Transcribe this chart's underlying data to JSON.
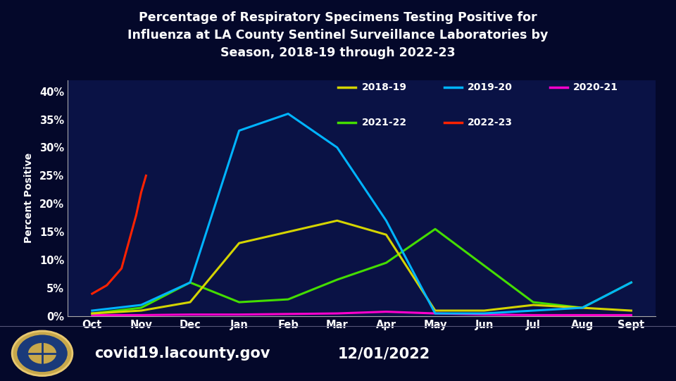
{
  "title": "Percentage of Respiratory Specimens Testing Positive for\nInfluenza at LA County Sentinel Surveillance Laboratories by\nSeason, 2018-19 through 2022-23",
  "ylabel": "Percent Positive",
  "xlabel_labels": [
    "Oct",
    "Nov",
    "Dec",
    "Jan",
    "Feb",
    "Mar",
    "Apr",
    "May",
    "Jun",
    "Jul",
    "Aug",
    "Sept"
  ],
  "ytick_labels": [
    "0%",
    "5%",
    "10%",
    "15%",
    "20%",
    "25%",
    "30%",
    "35%",
    "40%"
  ],
  "ytick_values": [
    0,
    5,
    10,
    15,
    20,
    25,
    30,
    35,
    40
  ],
  "ylim": [
    0,
    42
  ],
  "xlim": [
    -0.5,
    11.5
  ],
  "background_color": "#04082a",
  "plot_bg_color": "#0a1245",
  "text_color": "#ffffff",
  "footer_website": "covid19.lacounty.gov",
  "footer_date": "12/01/2022",
  "series": {
    "2018-19": {
      "color": "#d4d400",
      "x": [
        0,
        1,
        2,
        3,
        4,
        5,
        6,
        7,
        8,
        9,
        10,
        11
      ],
      "y": [
        0.5,
        1.0,
        2.5,
        13.0,
        15.0,
        17.0,
        14.5,
        1.0,
        1.0,
        2.0,
        1.5,
        1.0
      ]
    },
    "2019-20": {
      "color": "#00b4ff",
      "x": [
        0,
        1,
        2,
        3,
        4,
        5,
        6,
        7,
        8,
        9,
        10,
        11
      ],
      "y": [
        1.0,
        2.0,
        6.0,
        33.0,
        36.0,
        30.0,
        17.0,
        0.5,
        0.5,
        1.0,
        1.5,
        6.0
      ]
    },
    "2020-21": {
      "color": "#ff00cc",
      "x": [
        0,
        1,
        2,
        3,
        4,
        5,
        6,
        7,
        8,
        9,
        10,
        11
      ],
      "y": [
        0.2,
        0.2,
        0.3,
        0.3,
        0.4,
        0.5,
        0.8,
        0.5,
        0.3,
        0.2,
        0.2,
        0.2
      ]
    },
    "2021-22": {
      "color": "#44dd00",
      "x": [
        0,
        1,
        2,
        3,
        4,
        5,
        6,
        7,
        8,
        9,
        10,
        11
      ],
      "y": [
        0.5,
        1.5,
        6.0,
        2.5,
        3.0,
        6.5,
        9.5,
        15.5,
        9.0,
        2.5,
        1.5,
        6.0
      ]
    },
    "2022-23": {
      "color": "#ff2200",
      "x": [
        0,
        0.3,
        0.6,
        0.9,
        1.0,
        1.1
      ],
      "y": [
        4.0,
        5.5,
        8.5,
        18.0,
        22.0,
        25.0
      ]
    }
  },
  "legend_row1": [
    {
      "label": "2018-19",
      "color": "#d4d400"
    },
    {
      "label": "2019-20",
      "color": "#00b4ff"
    },
    {
      "label": "2020-21",
      "color": "#ff00cc"
    }
  ],
  "legend_row2": [
    {
      "label": "2021-22",
      "color": "#44dd00"
    },
    {
      "label": "2022-23",
      "color": "#ff2200"
    }
  ]
}
